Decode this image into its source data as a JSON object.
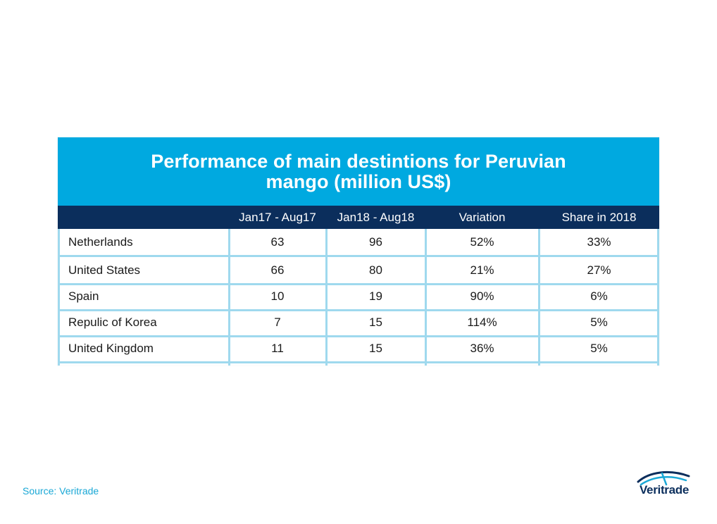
{
  "chart_data": {
    "type": "table",
    "title_lines": [
      "Performance of main destintions for Peruvian",
      "mango (million US$)"
    ],
    "columns": [
      "",
      "Jan17 - Aug17",
      "Jan18 - Aug18",
      "Variation",
      "Share in 2018"
    ],
    "rows": [
      {
        "country": "Netherlands",
        "jan17_aug17": "63",
        "jan18_aug18": "96",
        "variation": "52%",
        "share_2018": "33%"
      },
      {
        "country": "United States",
        "jan17_aug17": "66",
        "jan18_aug18": "80",
        "variation": "21%",
        "share_2018": "27%"
      },
      {
        "country": "Spain",
        "jan17_aug17": "10",
        "jan18_aug18": "19",
        "variation": "90%",
        "share_2018": "6%"
      },
      {
        "country": "Repulic of Korea",
        "jan17_aug17": "7",
        "jan18_aug18": "15",
        "variation": "114%",
        "share_2018": "5%"
      },
      {
        "country": "United Kingdom",
        "jan17_aug17": "11",
        "jan18_aug18": "15",
        "variation": "36%",
        "share_2018": "5%"
      }
    ]
  },
  "footer": {
    "source": "Source: Veritrade",
    "logo_text": "Veritrade"
  },
  "colors": {
    "title_band": "#00a9e0",
    "header_band": "#0b2e5c",
    "grid": "#9fd9ee",
    "source_text": "#1aa8d6"
  }
}
